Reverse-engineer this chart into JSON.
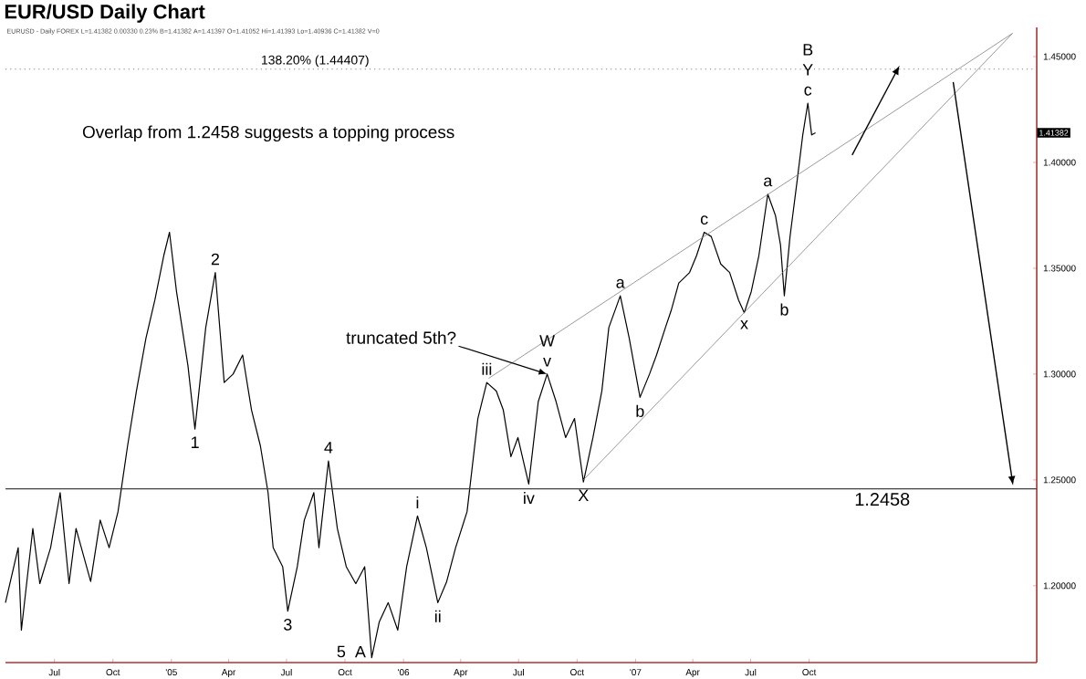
{
  "chart_data": {
    "type": "line",
    "title": "EUR/USD Daily Chart",
    "subtitle": "EURUSD - Daily FOREX L=1.41382 0.00330 0.23% B=1.41382 A=1.41397 O=1.41052 Hi=1.41393 Lo=1.40936 C=1.41382 V=0",
    "xlim": [
      "2004-04-15",
      "2008-09-23"
    ],
    "xticks": [
      {
        "value": "2004-07-01",
        "label": "Jul"
      },
      {
        "value": "2004-10-01",
        "label": "Oct"
      },
      {
        "value": "2005-01-01",
        "label": "'05"
      },
      {
        "value": "2005-04-01",
        "label": "Apr"
      },
      {
        "value": "2005-07-01",
        "label": "Jul"
      },
      {
        "value": "2005-10-01",
        "label": "Oct"
      },
      {
        "value": "2006-01-01",
        "label": "'06"
      },
      {
        "value": "2006-04-01",
        "label": "Apr"
      },
      {
        "value": "2006-07-01",
        "label": "Jul"
      },
      {
        "value": "2006-10-01",
        "label": "Oct"
      },
      {
        "value": "2007-01-01",
        "label": "'07"
      },
      {
        "value": "2007-04-01",
        "label": "Apr"
      },
      {
        "value": "2007-07-01",
        "label": "Jul"
      },
      {
        "value": "2007-10-01",
        "label": "Oct"
      }
    ],
    "ylim": [
      1.1637,
      1.4638
    ],
    "yticks": [
      {
        "value": 1.2,
        "label": "1.20000"
      },
      {
        "value": 1.25,
        "label": "1.25000"
      },
      {
        "value": 1.3,
        "label": "1.30000"
      },
      {
        "value": 1.35,
        "label": "1.35000"
      },
      {
        "value": 1.4,
        "label": "1.40000"
      },
      {
        "value": 1.45,
        "label": "1.45000"
      }
    ],
    "marker": "none",
    "line_style": "solid",
    "series": [
      {
        "color": "#000000",
        "x": [
          "2004-04-15",
          "2004-05-05",
          "2004-05-10",
          "2004-05-28",
          "2004-06-08",
          "2004-06-25",
          "2004-07-10",
          "2004-07-24",
          "2004-08-04",
          "2004-08-27",
          "2004-09-11",
          "2004-09-25",
          "2004-10-09",
          "2004-10-24",
          "2004-11-07",
          "2004-11-22",
          "2004-12-06",
          "2004-12-20",
          "2004-12-29",
          "2005-01-09",
          "2005-01-27",
          "2005-02-07",
          "2005-02-24",
          "2005-03-11",
          "2005-03-25",
          "2005-04-08",
          "2005-04-23",
          "2005-05-07",
          "2005-05-21",
          "2005-06-02",
          "2005-06-10",
          "2005-06-25",
          "2005-07-03",
          "2005-07-18",
          "2005-07-29",
          "2005-08-13",
          "2005-08-21",
          "2005-09-05",
          "2005-09-19",
          "2005-10-03",
          "2005-10-18",
          "2005-11-01",
          "2005-11-12",
          "2005-11-24",
          "2005-12-08",
          "2005-12-23",
          "2006-01-06",
          "2006-01-23",
          "2006-02-06",
          "2006-02-24",
          "2006-03-10",
          "2006-03-24",
          "2006-04-11",
          "2006-04-28",
          "2006-05-12",
          "2006-05-27",
          "2006-06-07",
          "2006-06-19",
          "2006-06-30",
          "2006-07-17",
          "2006-08-01",
          "2006-08-15",
          "2006-08-29",
          "2006-09-13",
          "2006-09-27",
          "2006-10-11",
          "2006-10-26",
          "2006-11-09",
          "2006-11-20",
          "2006-12-08",
          "2006-12-22",
          "2007-01-08",
          "2007-01-23",
          "2007-02-03",
          "2007-02-17",
          "2007-02-26",
          "2007-03-10",
          "2007-03-27",
          "2007-04-07",
          "2007-04-19",
          "2007-04-30",
          "2007-05-15",
          "2007-05-29",
          "2007-06-12",
          "2007-06-21",
          "2007-07-02",
          "2007-07-14",
          "2007-07-28",
          "2007-08-09",
          "2007-08-17",
          "2007-08-23",
          "2007-09-01",
          "2007-09-12",
          "2007-09-21",
          "2007-09-29",
          "2007-10-05",
          "2007-10-11"
        ],
        "values": [
          1.192,
          1.218,
          1.179,
          1.227,
          1.201,
          1.218,
          1.244,
          1.201,
          1.227,
          1.202,
          1.231,
          1.218,
          1.235,
          1.266,
          1.292,
          1.317,
          1.335,
          1.356,
          1.367,
          1.339,
          1.304,
          1.274,
          1.322,
          1.348,
          1.296,
          1.3,
          1.309,
          1.283,
          1.266,
          1.244,
          1.218,
          1.209,
          1.188,
          1.209,
          1.231,
          1.244,
          1.218,
          1.259,
          1.227,
          1.209,
          1.201,
          1.209,
          1.166,
          1.183,
          1.192,
          1.179,
          1.209,
          1.233,
          1.218,
          1.192,
          1.202,
          1.218,
          1.235,
          1.279,
          1.296,
          1.292,
          1.283,
          1.261,
          1.27,
          1.248,
          1.287,
          1.3,
          1.287,
          1.27,
          1.279,
          1.249,
          1.27,
          1.292,
          1.322,
          1.337,
          1.317,
          1.289,
          1.3,
          1.309,
          1.322,
          1.33,
          1.343,
          1.348,
          1.356,
          1.367,
          1.365,
          1.352,
          1.348,
          1.335,
          1.329,
          1.339,
          1.356,
          1.385,
          1.375,
          1.361,
          1.337,
          1.365,
          1.391,
          1.413,
          1.428,
          1.413,
          1.414
        ]
      },
      {
        "color": "#808080",
        "x": [
          "2006-05-15",
          "2008-08-16"
        ],
        "values": [
          1.298,
          1.461
        ]
      },
      {
        "color": "#808080",
        "x": [
          "2006-10-11",
          "2008-08-16"
        ],
        "values": [
          1.25,
          1.461
        ]
      }
    ],
    "ref_lines": [
      {
        "axis": "y",
        "value": 1.44407,
        "label": "138.20% (1.44407)",
        "line_style": "dotted",
        "color": "#808080"
      },
      {
        "axis": "y",
        "value": 1.2458,
        "label": "1.2458",
        "line_style": "solid",
        "color": "#404040"
      }
    ],
    "annotations": [
      "Overlap from 1.2458 suggests a topping process",
      "1.41382",
      {
        "text": "truncated 5th?",
        "x": "2006-08-15",
        "y": 1.3
      },
      {
        "text": "1",
        "x": "2005-02-07",
        "y": 1.274
      },
      {
        "text": "2",
        "x": "2005-03-11",
        "y": 1.348
      },
      {
        "text": "3",
        "x": "2005-07-03",
        "y": 1.188
      },
      {
        "text": "4",
        "x": "2005-09-05",
        "y": 1.259
      },
      {
        "text": "5",
        "x": "2005-11-12",
        "y": 1.166
      },
      {
        "text": "A",
        "x": "2005-11-12",
        "y": 1.166
      },
      {
        "text": "i",
        "x": "2006-01-23",
        "y": 1.233
      },
      {
        "text": "ii",
        "x": "2006-02-24",
        "y": 1.192
      },
      {
        "text": "iii",
        "x": "2006-05-12",
        "y": 1.296
      },
      {
        "text": "iv",
        "x": "2006-07-17",
        "y": 1.248
      },
      {
        "text": "v",
        "x": "2006-08-15",
        "y": 1.3
      },
      {
        "text": "W",
        "x": "2006-08-15",
        "y": 1.3
      },
      {
        "text": "X",
        "x": "2006-10-11",
        "y": 1.249
      },
      {
        "text": "a",
        "x": "2006-12-08",
        "y": 1.337
      },
      {
        "text": "b",
        "x": "2007-01-08",
        "y": 1.289
      },
      {
        "text": "c",
        "x": "2007-04-19",
        "y": 1.367
      },
      {
        "text": "x",
        "x": "2007-06-21",
        "y": 1.329
      },
      {
        "text": "a",
        "x": "2007-07-28",
        "y": 1.385
      },
      {
        "text": "b",
        "x": "2007-08-23",
        "y": 1.337
      },
      {
        "text": "c",
        "x": "2007-09-29",
        "y": 1.428
      },
      {
        "text": "Y",
        "x": "2007-09-29",
        "y": 1.428
      },
      {
        "text": "B",
        "x": "2007-09-29",
        "y": 1.428
      }
    ]
  }
}
